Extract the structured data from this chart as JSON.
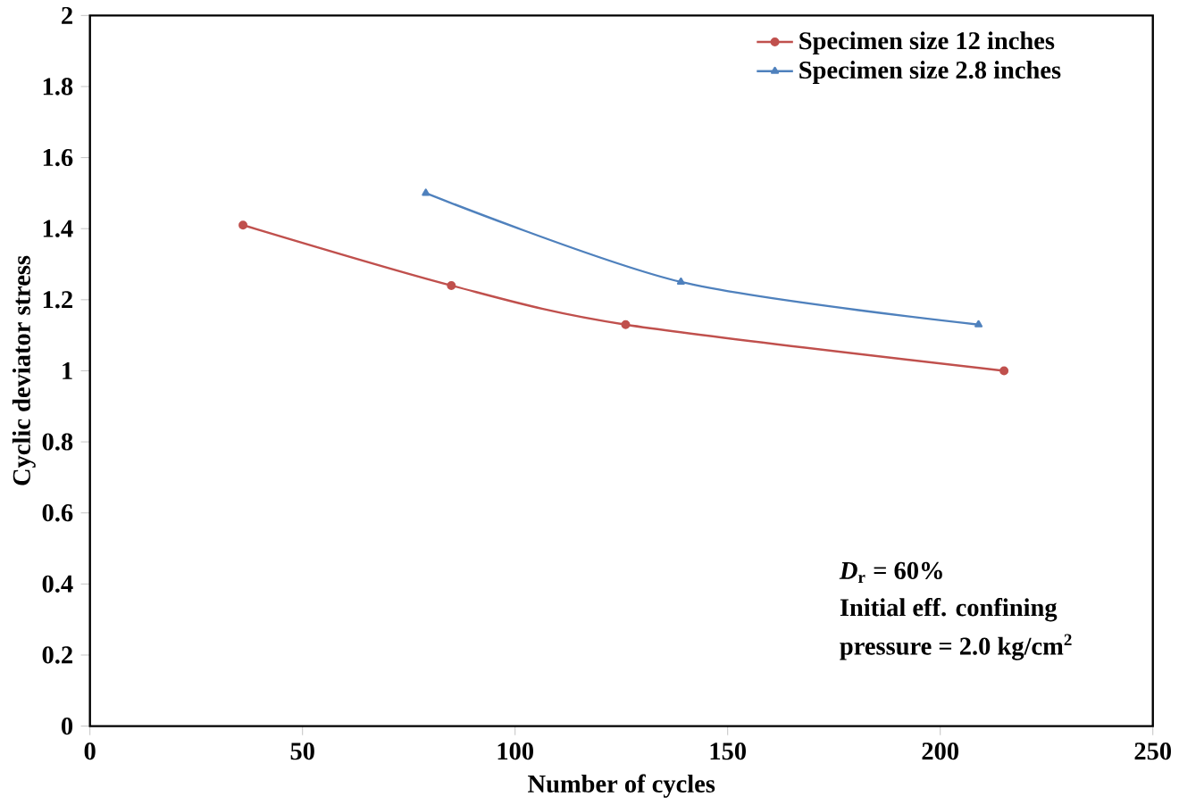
{
  "chart_data": {
    "type": "line",
    "xlabel": "Number of cycles",
    "ylabel": "Cyclic deviator stress",
    "series": [
      {
        "name": "Specimen size 12 inches",
        "color": "#c0504d",
        "marker": "circle",
        "x": [
          36,
          85,
          126,
          215
        ],
        "values": [
          1.41,
          1.24,
          1.13,
          1.0
        ]
      },
      {
        "name": "Specimen size 2.8 inches",
        "color": "#4f81bd",
        "marker": "triangle",
        "x": [
          79,
          139,
          209
        ],
        "values": [
          1.5,
          1.25,
          1.13
        ]
      }
    ],
    "xlim": [
      0,
      250
    ],
    "ylim": [
      0,
      2
    ],
    "xticks": [
      0,
      50,
      100,
      150,
      200,
      250
    ],
    "yticks": [
      0,
      0.2,
      0.4,
      0.6,
      0.8,
      1,
      1.2,
      1.4,
      1.6,
      1.8,
      2
    ],
    "grid": false,
    "legend": "top right",
    "line_style": "solid",
    "annotations": [
      "*D*$_{r}$ = 60%",
      "Initial  eff. confining",
      "pressure = 2.0 kg/cm$^{2}$"
    ]
  }
}
